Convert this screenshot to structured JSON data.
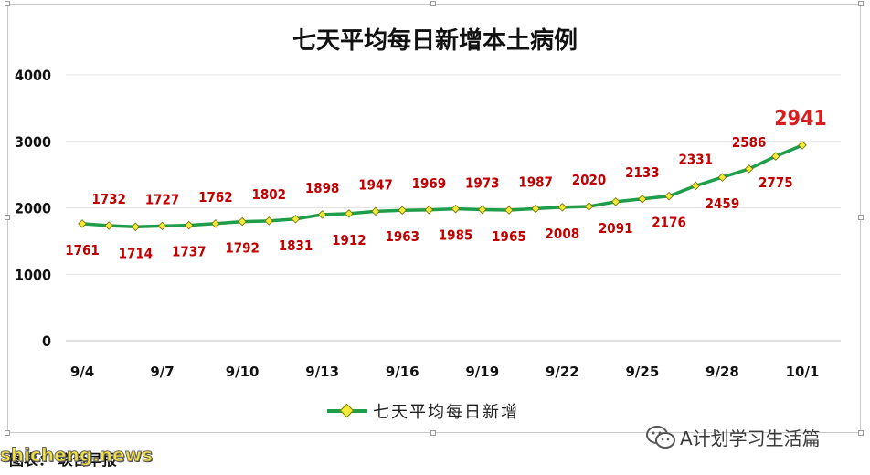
{
  "chart_data": {
    "type": "line",
    "title": "七天平均每日新增本土病例",
    "ylim": [
      0,
      4000
    ],
    "yticks": [
      0,
      1000,
      2000,
      3000,
      4000
    ],
    "grid": true,
    "legend_position": "bottom",
    "x_tick_labels": [
      "9/4",
      "9/7",
      "9/10",
      "9/13",
      "9/16",
      "9/19",
      "9/22",
      "9/25",
      "9/28",
      "10/1"
    ],
    "categories": [
      "9/4",
      "9/5",
      "9/6",
      "9/7",
      "9/8",
      "9/9",
      "9/10",
      "9/11",
      "9/12",
      "9/13",
      "9/14",
      "9/15",
      "9/16",
      "9/17",
      "9/18",
      "9/19",
      "9/20",
      "9/21",
      "9/22",
      "9/23",
      "9/24",
      "9/25",
      "9/26",
      "9/27",
      "9/28",
      "9/29",
      "9/30",
      "10/1"
    ],
    "series": [
      {
        "name": "七天平均每日新增",
        "color": "#1e9e4a",
        "marker_color": "#f2ea3a",
        "values": [
          1761,
          1732,
          1714,
          1727,
          1737,
          1762,
          1792,
          1802,
          1831,
          1898,
          1912,
          1947,
          1963,
          1969,
          1985,
          1973,
          1965,
          1987,
          2008,
          2020,
          2091,
          2133,
          2176,
          2331,
          2459,
          2586,
          2775,
          2941
        ]
      }
    ],
    "highlight_color": "#d81e1e",
    "label_color": "#c00000"
  },
  "legend": {
    "label": "七天平均每日新增"
  },
  "footer": {
    "wechat_text": "A计划学习生活篇",
    "source_text": "图表：  联合早报",
    "watermark": "shicheng.news"
  }
}
